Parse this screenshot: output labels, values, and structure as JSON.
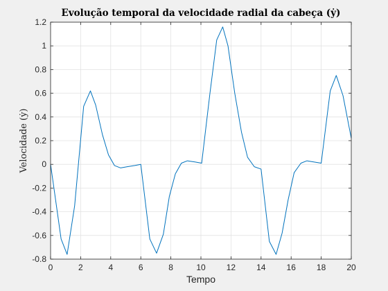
{
  "chart_data": {
    "type": "line",
    "title": "Evolução temporal da velocidade radial da cabeça (ẏ)",
    "xlabel": "Tempo",
    "ylabel": "Velocidade (ẏ)",
    "xlim": [
      0,
      20
    ],
    "ylim": [
      -0.8,
      1.2
    ],
    "xticks": [
      "0",
      "2",
      "4",
      "6",
      "8",
      "10",
      "12",
      "14",
      "16",
      "18",
      "20"
    ],
    "yticks": [
      "-0.8",
      "-0.6",
      "-0.4",
      "-0.2",
      "0",
      "0.2",
      "0.4",
      "0.6",
      "0.8",
      "1",
      "1.2"
    ],
    "grid": true,
    "series": [
      {
        "color": "#0072bd",
        "x": [
          0,
          0.7,
          1.1,
          1.6,
          2.2,
          2.65,
          3.0,
          3.45,
          3.85,
          4.25,
          4.65,
          5.1,
          5.6,
          6.0,
          6.6,
          7.05,
          7.5,
          7.9,
          8.3,
          8.7,
          9.1,
          9.6,
          10.05,
          10.6,
          11.05,
          11.45,
          11.8,
          12.25,
          12.7,
          13.1,
          13.55,
          14.0,
          14.55,
          15.0,
          15.4,
          15.8,
          16.2,
          16.65,
          17.05,
          17.5,
          18.0,
          18.6,
          19.0,
          19.45,
          20.0
        ],
        "y": [
          0,
          -0.63,
          -0.76,
          -0.35,
          0.49,
          0.62,
          0.5,
          0.25,
          0.08,
          -0.01,
          -0.03,
          -0.02,
          -0.01,
          0,
          -0.63,
          -0.75,
          -0.59,
          -0.27,
          -0.08,
          0.01,
          0.03,
          0.02,
          0.01,
          0.6,
          1.05,
          1.16,
          1.0,
          0.6,
          0.27,
          0.06,
          -0.02,
          -0.04,
          -0.65,
          -0.76,
          -0.58,
          -0.3,
          -0.07,
          0.01,
          0.03,
          0.02,
          0.01,
          0.62,
          0.75,
          0.58,
          0.22
        ]
      }
    ]
  }
}
